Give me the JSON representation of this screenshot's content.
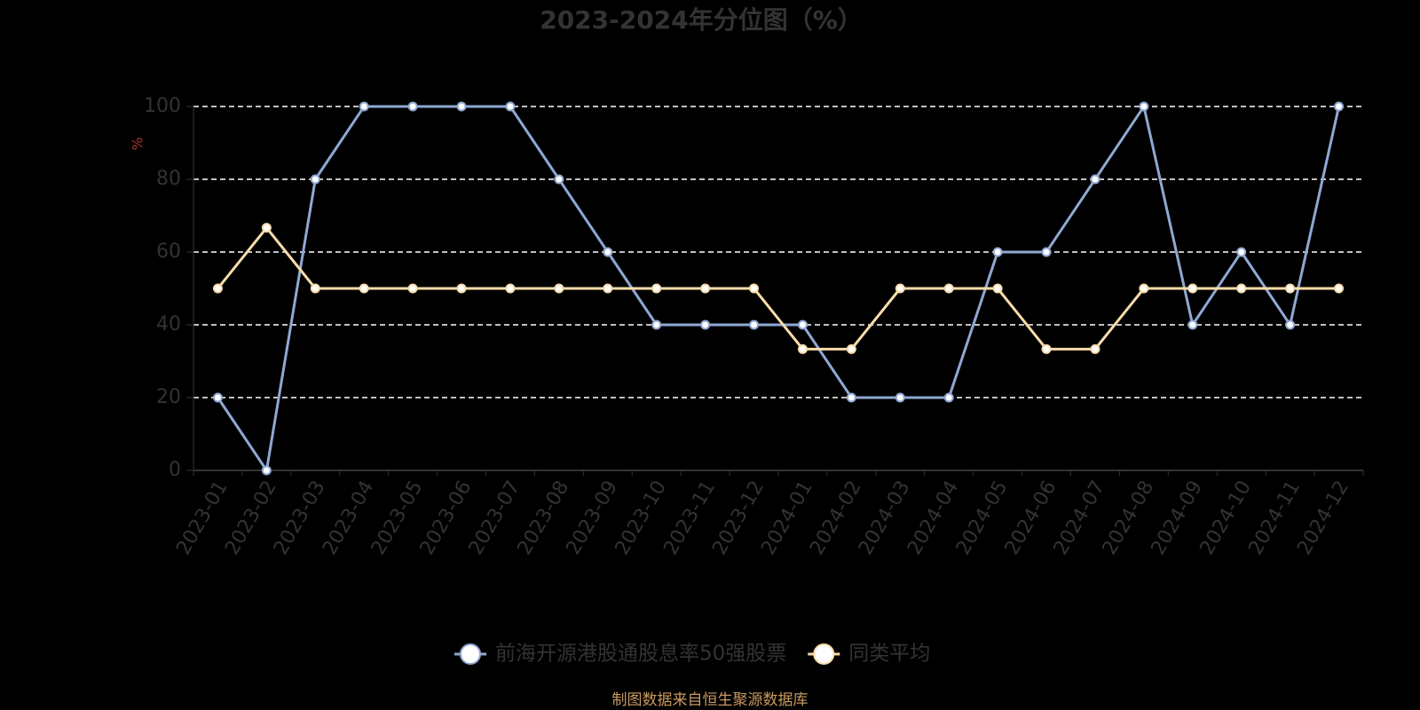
{
  "chart_data": {
    "type": "line",
    "title": "2023-2024年分位图（%）",
    "y_axis_label": "%",
    "categories": [
      "2023-01",
      "2023-02",
      "2023-03",
      "2023-04",
      "2023-05",
      "2023-06",
      "2023-07",
      "2023-08",
      "2023-09",
      "2023-10",
      "2023-11",
      "2023-12",
      "2024-01",
      "2024-02",
      "2024-03",
      "2024-04",
      "2024-05",
      "2024-06",
      "2024-07",
      "2024-08",
      "2024-09",
      "2024-10",
      "2024-11",
      "2024-12"
    ],
    "series": [
      {
        "name": "前海开源港股通股息率50强股票",
        "color": "#8fa8d2",
        "values": [
          20,
          0,
          80,
          100,
          100,
          100,
          100,
          80,
          60,
          40,
          40,
          40,
          40,
          20,
          20,
          20,
          60,
          60,
          80,
          100,
          40,
          60,
          40,
          100
        ]
      },
      {
        "name": "同类平均",
        "color": "#f7dcaa",
        "values": [
          50,
          66.67,
          50,
          50,
          50,
          50,
          50,
          50,
          50,
          50,
          50,
          50,
          33.33,
          33.33,
          50,
          50,
          50,
          33.33,
          33.33,
          50,
          50,
          50,
          50,
          50
        ]
      }
    ],
    "ylim": [
      0,
      100
    ],
    "yticks": [
      0,
      20,
      40,
      60,
      80,
      100
    ],
    "grid": true,
    "legend": "bottom",
    "source": "制图数据来自恒生聚源数据库"
  }
}
